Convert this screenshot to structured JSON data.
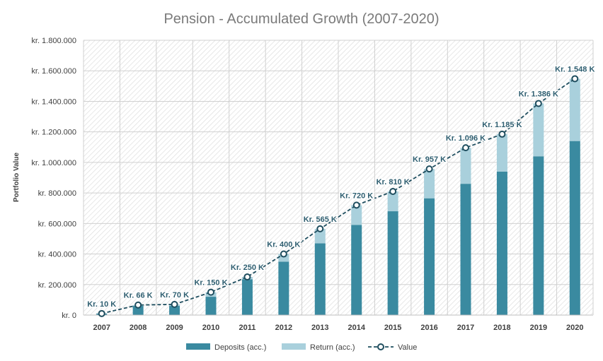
{
  "chart_data": {
    "type": "bar",
    "title": "Pension - Accumulated Growth (2007-2020)",
    "xlabel": "",
    "ylabel": "Portfolio Value",
    "ylim": [
      0,
      1800000
    ],
    "y_ticks": [
      0,
      200000,
      400000,
      600000,
      800000,
      1000000,
      1200000,
      1400000,
      1600000,
      1800000
    ],
    "y_tick_labels": [
      "kr. 0",
      "kr. 200.000",
      "kr. 400.000",
      "kr. 600.000",
      "kr. 800.000",
      "kr. 1.000.000",
      "kr. 1.200.000",
      "kr. 1.400.000",
      "kr. 1.600.000",
      "kr. 1.800.000"
    ],
    "categories": [
      "2007",
      "2008",
      "2009",
      "2010",
      "2011",
      "2012",
      "2013",
      "2014",
      "2015",
      "2016",
      "2017",
      "2018",
      "2019",
      "2020"
    ],
    "stacked": true,
    "grid": true,
    "legend_position": "bottom",
    "series": [
      {
        "name": "Deposits (acc.)",
        "type": "bar",
        "color": "#3a8aa0",
        "values": [
          10000,
          60000,
          60000,
          120000,
          235000,
          350000,
          470000,
          590000,
          680000,
          765000,
          860000,
          940000,
          1040000,
          1140000
        ]
      },
      {
        "name": "Return (acc.)",
        "type": "bar",
        "color": "#a9d0dc",
        "values": [
          0,
          6000,
          10000,
          30000,
          15000,
          50000,
          95000,
          130000,
          130000,
          192000,
          236000,
          245000,
          346000,
          408000
        ]
      },
      {
        "name": "Value",
        "type": "line",
        "color": "#1f4e5f",
        "values": [
          10000,
          66000,
          70000,
          150000,
          250000,
          400000,
          565000,
          720000,
          810000,
          957000,
          1096000,
          1185000,
          1386000,
          1548000
        ],
        "labels": [
          "Kr. 10 K",
          "Kr. 66 K",
          "Kr. 70 K",
          "Kr. 150 K",
          "Kr. 250 K",
          "Kr. 400 K",
          "Kr. 565 K",
          "Kr. 720 K",
          "Kr. 810 K",
          "Kr. 957 K",
          "Kr. 1.096 K",
          "Kr. 1.185 K",
          "Kr. 1.386 K",
          "Kr. 1.548 K"
        ]
      }
    ]
  }
}
